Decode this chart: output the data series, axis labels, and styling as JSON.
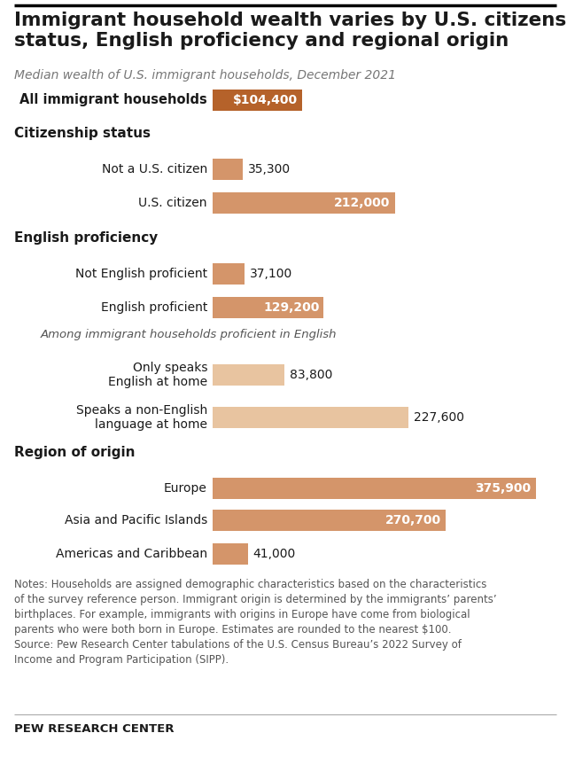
{
  "title": "Immigrant household wealth varies by U.S. citizenship\nstatus, English proficiency and regional origin",
  "subtitle": "Median wealth of U.S. immigrant households, December 2021",
  "notes": "Notes: Households are assigned demographic characteristics based on the characteristics\nof the survey reference person. Immigrant origin is determined by the immigrants’ parents’\nbirthplaces. For example, immigrants with origins in Europe have come from biological\nparents who were both born in Europe. Estimates are rounded to the nearest $100.\nSource: Pew Research Center tabulations of the U.S. Census Bureau’s 2022 Survey of\nIncome and Program Participation (SIPP).",
  "source_label": "PEW RESEARCH CENTER",
  "bars": [
    {
      "label": "All immigrant households",
      "value": 104400,
      "display": "$104,400",
      "color": "#b5622a",
      "label_in_bar": true,
      "indent": 0,
      "bold_label": true
    },
    {
      "label": "Not a U.S. citizen",
      "value": 35300,
      "display": "35,300",
      "color": "#d4956a",
      "label_in_bar": false,
      "indent": 1,
      "bold_label": false
    },
    {
      "label": "U.S. citizen",
      "value": 212000,
      "display": "212,000",
      "color": "#d4956a",
      "label_in_bar": true,
      "indent": 1,
      "bold_label": false
    },
    {
      "label": "Not English proficient",
      "value": 37100,
      "display": "37,100",
      "color": "#d4956a",
      "label_in_bar": false,
      "indent": 1,
      "bold_label": false
    },
    {
      "label": "English proficient",
      "value": 129200,
      "display": "129,200",
      "color": "#d4956a",
      "label_in_bar": true,
      "indent": 1,
      "bold_label": false
    },
    {
      "label": "Only speaks\nEnglish at home",
      "value": 83800,
      "display": "83,800",
      "color": "#e8c4a0",
      "label_in_bar": false,
      "indent": 2,
      "bold_label": false
    },
    {
      "label": "Speaks a non-English\nlanguage at home",
      "value": 227600,
      "display": "227,600",
      "color": "#e8c4a0",
      "label_in_bar": false,
      "indent": 2,
      "bold_label": false
    },
    {
      "label": "Europe",
      "value": 375900,
      "display": "375,900",
      "color": "#d4956a",
      "label_in_bar": true,
      "indent": 1,
      "bold_label": false
    },
    {
      "label": "Asia and Pacific Islands",
      "value": 270700,
      "display": "270,700",
      "color": "#d4956a",
      "label_in_bar": true,
      "indent": 1,
      "bold_label": false
    },
    {
      "label": "Americas and Caribbean",
      "value": 41000,
      "display": "41,000",
      "color": "#d4956a",
      "label_in_bar": false,
      "indent": 1,
      "bold_label": false
    }
  ],
  "max_value": 400000,
  "background_color": "#ffffff",
  "title_color": "#1a1a1a",
  "subtitle_color": "#777777",
  "label_color": "#1a1a1a",
  "value_color_in_bar": "#ffffff",
  "value_color_out_bar": "#1a1a1a",
  "section_header_color": "#1a1a1a",
  "notes_color": "#555555",
  "top_line_color": "#000000",
  "bottom_line_color": "#aaaaaa"
}
